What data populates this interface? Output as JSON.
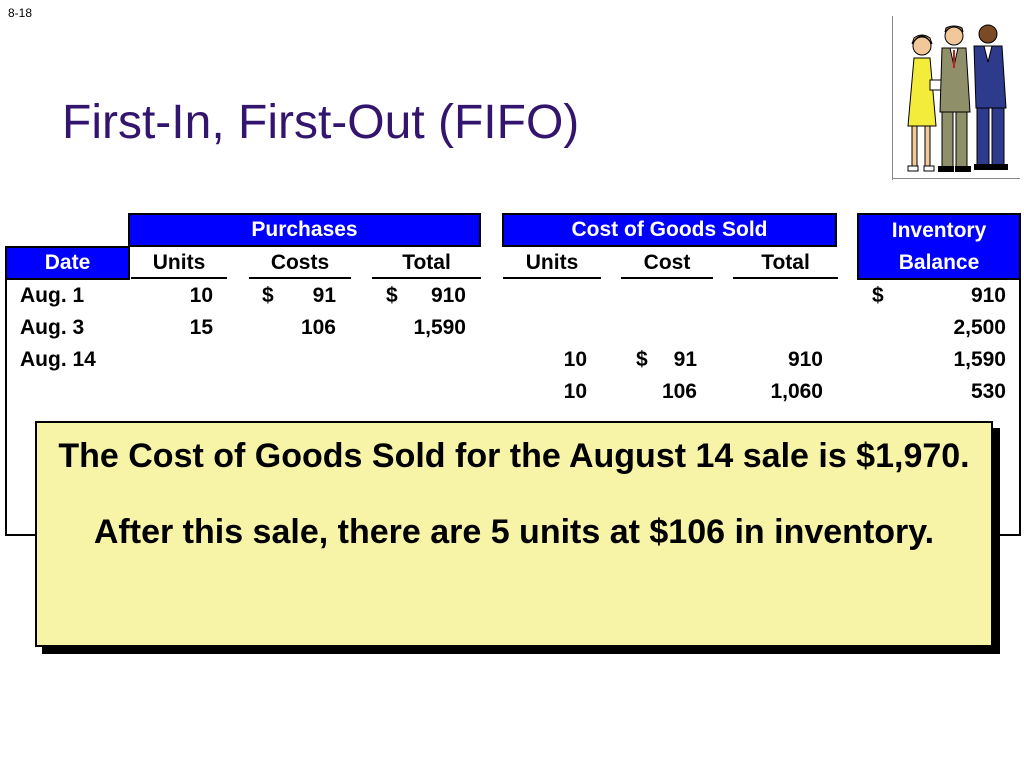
{
  "slide_number": "8-18",
  "title": "First-In, First-Out (FIFO)",
  "groups": {
    "purchases": "Purchases",
    "cogs": "Cost of Goods Sold",
    "inventory_line1": "Inventory",
    "inventory_line2": "Balance"
  },
  "columns": {
    "date": "Date",
    "p_units": "Units",
    "p_costs": "Costs",
    "p_total": "Total",
    "c_units": "Units",
    "c_cost": "Cost",
    "c_total": "Total"
  },
  "rows": [
    {
      "date": "Aug. 1",
      "p_units": "10",
      "p_cost_cur": "$",
      "p_cost": "91",
      "p_total_cur": "$",
      "p_total": "910",
      "c_units": "",
      "c_cost_cur": "",
      "c_cost": "",
      "c_total": "",
      "bal_cur": "$",
      "bal": "910"
    },
    {
      "date": "Aug. 3",
      "p_units": "15",
      "p_cost_cur": "",
      "p_cost": "106",
      "p_total_cur": "",
      "p_total": "1,590",
      "c_units": "",
      "c_cost_cur": "",
      "c_cost": "",
      "c_total": "",
      "bal_cur": "",
      "bal": "2,500"
    },
    {
      "date": "Aug. 14",
      "p_units": "",
      "p_cost_cur": "",
      "p_cost": "",
      "p_total_cur": "",
      "p_total": "",
      "c_units": "10",
      "c_cost_cur": "$",
      "c_cost": "91",
      "c_total": "910",
      "bal_cur": "",
      "bal": "1,590"
    },
    {
      "date": "",
      "p_units": "",
      "p_cost_cur": "",
      "p_cost": "",
      "p_total_cur": "",
      "p_total": "",
      "c_units": "10",
      "c_cost_cur": "",
      "c_cost": "106",
      "c_total": "1,060",
      "bal_cur": "",
      "bal": "530"
    }
  ],
  "callout": {
    "line1": "The Cost of Goods Sold for the August 14 sale is $1,970.",
    "line2": "After this sale, there are 5 units at $106 in inventory."
  },
  "colors": {
    "title": "#33156e",
    "header_bg": "#0000ff",
    "callout_bg": "#f7f4a8"
  }
}
